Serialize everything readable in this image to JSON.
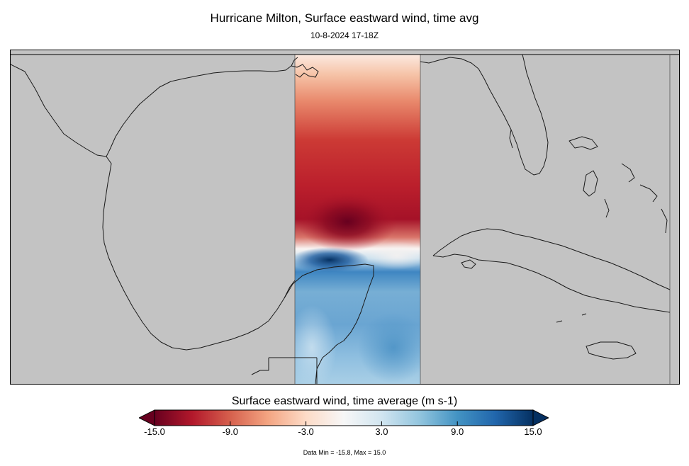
{
  "title": "Hurricane Milton, Surface eastward wind, time avg",
  "subtitle": "10-8-2024 17-18Z",
  "map": {
    "land_color": "#c3c3c3",
    "coastline_color": "#1a1a1a",
    "data_region": "longitudinal strip over the eastern Gulf of Mexico and Yucatan",
    "field": "Surface eastward wind, time average",
    "features": {
      "strong_negative_core": "-15.8 near the hurricane center (dark red)",
      "positive_band": "blue band south of the center over the Yucatan Channel"
    }
  },
  "colorbar": {
    "title": "Surface eastward wind, time average (m s-1)",
    "min": -15.0,
    "max": 15.0,
    "ticks": [
      "-15.0",
      "-9.0",
      "-3.0",
      "3.0",
      "9.0",
      "15.0"
    ],
    "colors": [
      "#67001f",
      "#b2182b",
      "#d6604d",
      "#f4a582",
      "#fddbc7",
      "#f7f7f7",
      "#d1e5f0",
      "#92c5de",
      "#4393c3",
      "#2166ac",
      "#053061"
    ],
    "extend": "both"
  },
  "data_minmax": "Data Min = -15.8, Max = 15.0"
}
